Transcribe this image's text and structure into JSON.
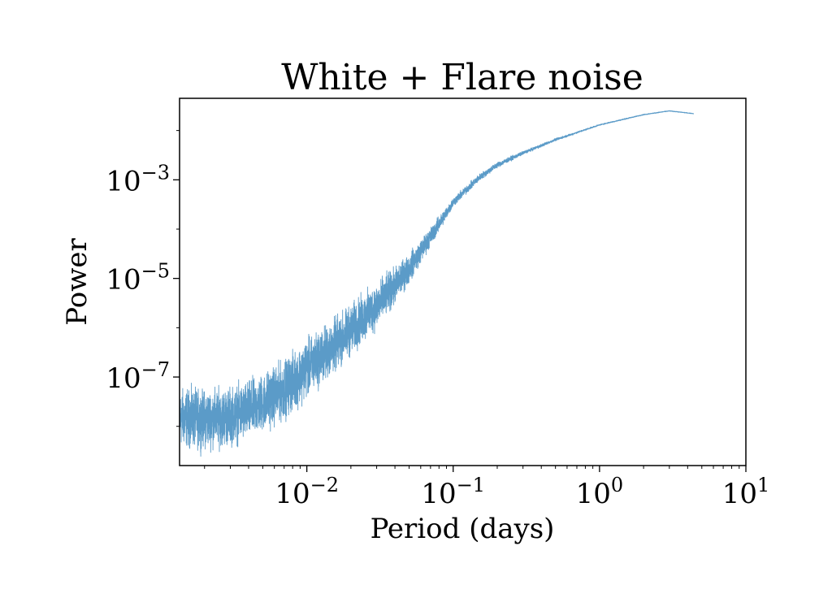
{
  "chart_data": {
    "type": "line",
    "title": "White + Flare noise",
    "xlabel": "Period (days)",
    "ylabel": "Power",
    "x_scale": "log",
    "y_scale": "log",
    "xlim": [
      0.00135,
      10
    ],
    "ylim": [
      1.6e-09,
      0.045
    ],
    "grid": false,
    "legend": "none",
    "x_ticks": [
      {
        "value": 0.01,
        "base": "10",
        "exp": "−2"
      },
      {
        "value": 0.1,
        "base": "10",
        "exp": "−1"
      },
      {
        "value": 1,
        "base": "10",
        "exp": "0"
      },
      {
        "value": 10,
        "base": "10",
        "exp": "1"
      }
    ],
    "y_ticks": [
      {
        "value": 1e-07,
        "base": "10",
        "exp": "−7"
      },
      {
        "value": 1e-05,
        "base": "10",
        "exp": "−5"
      },
      {
        "value": 0.001,
        "base": "10",
        "exp": "−3"
      }
    ],
    "series": [
      {
        "color": "#5b9bc8",
        "x_range": [
          0.00135,
          4.4
        ],
        "trend": [
          [
            0.00135,
            1.5e-08
          ],
          [
            0.002,
            1.4e-08
          ],
          [
            0.003,
            1.6e-08
          ],
          [
            0.004,
            2.1e-08
          ],
          [
            0.005,
            3e-08
          ],
          [
            0.007,
            5.5e-08
          ],
          [
            0.01,
            1.5e-07
          ],
          [
            0.015,
            4e-07
          ],
          [
            0.02,
            9e-07
          ],
          [
            0.03,
            2.8e-06
          ],
          [
            0.04,
            7e-06
          ],
          [
            0.05,
            1.6e-05
          ],
          [
            0.07,
            7e-05
          ],
          [
            0.1,
            0.00035
          ],
          [
            0.15,
            0.0011
          ],
          [
            0.2,
            0.002
          ],
          [
            0.3,
            0.0035
          ],
          [
            0.5,
            0.0065
          ],
          [
            1,
            0.013
          ],
          [
            2,
            0.021
          ],
          [
            3,
            0.025
          ],
          [
            4.4,
            0.022
          ]
        ],
        "scatter_dex": [
          [
            0.00135,
            0.5
          ],
          [
            0.01,
            0.5
          ],
          [
            0.03,
            0.4
          ],
          [
            0.06,
            0.2
          ],
          [
            0.1,
            0.08
          ],
          [
            0.3,
            0.03
          ],
          [
            1,
            0.01
          ],
          [
            4.4,
            0.005
          ]
        ]
      }
    ]
  }
}
